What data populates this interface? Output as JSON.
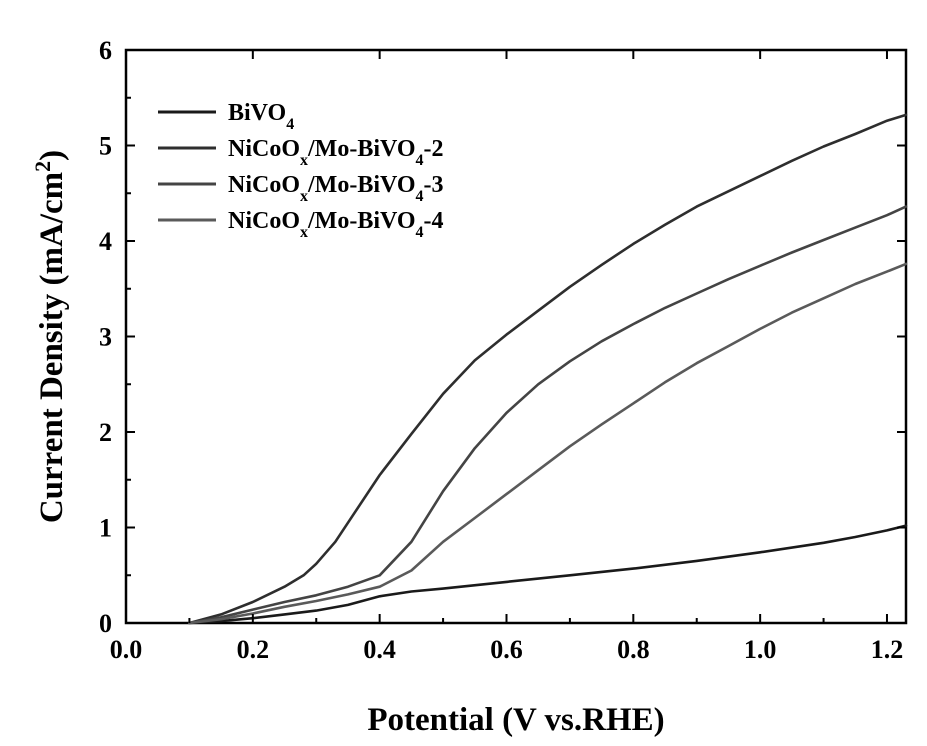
{
  "chart_data": {
    "type": "line",
    "title": "",
    "xlabel": "Potential (V vs.RHE)",
    "ylabel_parts": [
      "Current Density (mA/cm",
      "2",
      ")"
    ],
    "xlim": [
      0.0,
      1.23
    ],
    "ylim": [
      0,
      6
    ],
    "x_ticks": [
      0.0,
      0.2,
      0.4,
      0.6,
      0.8,
      1.0,
      1.2
    ],
    "x_tick_labels": [
      "0.0",
      "0.2",
      "0.4",
      "0.6",
      "0.8",
      "1.0",
      "1.2"
    ],
    "y_ticks": [
      0,
      1,
      2,
      3,
      4,
      5,
      6
    ],
    "y_tick_labels": [
      "0",
      "1",
      "2",
      "3",
      "4",
      "5",
      "6"
    ],
    "grid": false,
    "legend_placement": "top-left",
    "series": [
      {
        "name": "BiVO4",
        "legend_parts": [
          [
            "BiVO",
            ""
          ],
          [
            "4",
            "sub"
          ]
        ],
        "color": "#1a1a1a",
        "x": [
          0.1,
          0.15,
          0.2,
          0.25,
          0.3,
          0.35,
          0.4,
          0.45,
          0.5,
          0.6,
          0.7,
          0.8,
          0.9,
          1.0,
          1.1,
          1.15,
          1.2,
          1.23
        ],
        "y": [
          0.0,
          0.02,
          0.05,
          0.09,
          0.13,
          0.19,
          0.28,
          0.33,
          0.36,
          0.43,
          0.5,
          0.57,
          0.65,
          0.74,
          0.84,
          0.9,
          0.97,
          1.02
        ]
      },
      {
        "name": "NiCoOx/Mo-BiVO4-2",
        "legend_parts": [
          [
            "NiCoO",
            ""
          ],
          [
            "x",
            "sub"
          ],
          [
            "/Mo-BiVO",
            ""
          ],
          [
            "4",
            "sub"
          ],
          [
            "-2",
            ""
          ]
        ],
        "color": "#2e2e2e",
        "x": [
          0.1,
          0.15,
          0.2,
          0.25,
          0.28,
          0.3,
          0.33,
          0.36,
          0.4,
          0.45,
          0.5,
          0.55,
          0.6,
          0.65,
          0.7,
          0.75,
          0.8,
          0.85,
          0.9,
          0.95,
          1.0,
          1.05,
          1.1,
          1.15,
          1.2,
          1.23
        ],
        "y": [
          0.0,
          0.09,
          0.22,
          0.38,
          0.5,
          0.62,
          0.85,
          1.15,
          1.55,
          1.98,
          2.4,
          2.75,
          3.02,
          3.27,
          3.52,
          3.75,
          3.97,
          4.17,
          4.36,
          4.52,
          4.68,
          4.84,
          4.99,
          5.12,
          5.26,
          5.32
        ]
      },
      {
        "name": "NiCoOx/Mo-BiVO4-3",
        "legend_parts": [
          [
            "NiCoO",
            ""
          ],
          [
            "x",
            "sub"
          ],
          [
            "/Mo-BiVO",
            ""
          ],
          [
            "4",
            "sub"
          ],
          [
            "-3",
            ""
          ]
        ],
        "color": "#444444",
        "x": [
          0.1,
          0.15,
          0.2,
          0.25,
          0.3,
          0.35,
          0.4,
          0.45,
          0.5,
          0.55,
          0.6,
          0.65,
          0.7,
          0.75,
          0.8,
          0.85,
          0.9,
          0.95,
          1.0,
          1.05,
          1.1,
          1.15,
          1.2,
          1.23
        ],
        "y": [
          0.0,
          0.06,
          0.14,
          0.22,
          0.29,
          0.38,
          0.5,
          0.85,
          1.38,
          1.83,
          2.2,
          2.5,
          2.74,
          2.95,
          3.13,
          3.3,
          3.45,
          3.6,
          3.74,
          3.88,
          4.01,
          4.14,
          4.27,
          4.36
        ]
      },
      {
        "name": "NiCoOx/Mo-BiVO4-4",
        "legend_parts": [
          [
            "NiCoO",
            ""
          ],
          [
            "x",
            "sub"
          ],
          [
            "/Mo-BiVO",
            ""
          ],
          [
            "4",
            "sub"
          ],
          [
            "-4",
            ""
          ]
        ],
        "color": "#5a5a5a",
        "x": [
          0.1,
          0.15,
          0.2,
          0.25,
          0.3,
          0.35,
          0.4,
          0.45,
          0.5,
          0.55,
          0.6,
          0.65,
          0.7,
          0.75,
          0.8,
          0.85,
          0.9,
          0.95,
          1.0,
          1.05,
          1.1,
          1.15,
          1.2,
          1.23
        ],
        "y": [
          0.0,
          0.04,
          0.1,
          0.17,
          0.23,
          0.3,
          0.38,
          0.55,
          0.85,
          1.1,
          1.35,
          1.6,
          1.85,
          2.08,
          2.3,
          2.52,
          2.72,
          2.9,
          3.08,
          3.25,
          3.4,
          3.55,
          3.68,
          3.76
        ]
      }
    ]
  }
}
